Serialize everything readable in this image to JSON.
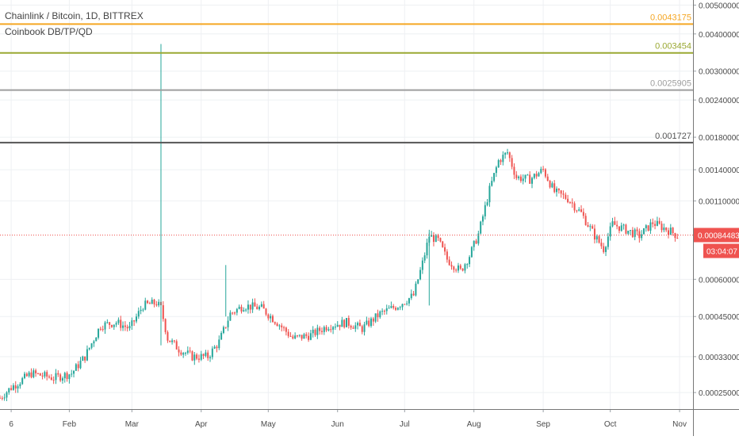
{
  "legend": {
    "symbol_line": "Chainlink / Bitcoin, 1D, BITTREX",
    "indicator_line": "Coinbook DB/TP/QD"
  },
  "chart_data": {
    "type": "candlestick",
    "y_scale": "log",
    "y_ticks": [
      "0.00500000",
      "0.00400000",
      "0.00300000",
      "0.00240000",
      "0.00180000",
      "0.00140000",
      "0.00110000",
      "0.00084483",
      "0.00060000",
      "0.00045000",
      "0.00033000",
      "0.00025000"
    ],
    "x_ticks": [
      "6",
      "Feb",
      "Mar",
      "Apr",
      "May",
      "Jun",
      "Jul",
      "Aug",
      "Sep",
      "Oct",
      "Nov"
    ],
    "levels": [
      {
        "label": "0.0043175",
        "value": 0.0043175,
        "color": "#f5a623"
      },
      {
        "label": "0.003454",
        "value": 0.003454,
        "color": "#9aa832"
      },
      {
        "label": "0.0025905",
        "value": 0.0025905,
        "color": "#9e9e9e"
      },
      {
        "label": "0.001727",
        "value": 0.001727,
        "color": "#555555"
      }
    ],
    "last_price": {
      "label": "0.00084483",
      "value": 0.00084483,
      "countdown": "03:04:07",
      "color": "#ef5350"
    },
    "up_color": "#26a69a",
    "down_color": "#ef5350",
    "price_path": [
      [
        "2019-01-01",
        0.00024
      ],
      [
        "2019-01-06",
        0.00026
      ],
      [
        "2019-01-15",
        0.00029
      ],
      [
        "2019-01-25",
        0.00028
      ],
      [
        "2019-02-02",
        0.00029
      ],
      [
        "2019-02-08",
        0.00033
      ],
      [
        "2019-02-15",
        0.00042
      ],
      [
        "2019-02-22",
        0.00043
      ],
      [
        "2019-02-28",
        0.00041
      ],
      [
        "2019-03-06",
        0.00049
      ],
      [
        "2019-03-12",
        0.0005
      ],
      [
        "2019-03-14",
        0.00048
      ],
      [
        "2019-03-17",
        0.00038
      ],
      [
        "2019-03-22",
        0.00035
      ],
      [
        "2019-03-28",
        0.00033
      ],
      [
        "2019-04-04",
        0.00033
      ],
      [
        "2019-04-09",
        0.00037
      ],
      [
        "2019-04-14",
        0.00046
      ],
      [
        "2019-04-20",
        0.00049
      ],
      [
        "2019-04-28",
        0.00048
      ],
      [
        "2019-05-05",
        0.00043
      ],
      [
        "2019-05-12",
        0.00038
      ],
      [
        "2019-05-20",
        0.00039
      ],
      [
        "2019-05-28",
        0.00042
      ],
      [
        "2019-06-05",
        0.00043
      ],
      [
        "2019-06-12",
        0.00041
      ],
      [
        "2019-06-20",
        0.00046
      ],
      [
        "2019-06-28",
        0.00049
      ],
      [
        "2019-07-05",
        0.00053
      ],
      [
        "2019-07-09",
        0.00068
      ],
      [
        "2019-07-12",
        0.00084
      ],
      [
        "2019-07-16",
        0.00081
      ],
      [
        "2019-07-20",
        0.0007
      ],
      [
        "2019-07-26",
        0.00064
      ],
      [
        "2019-07-30",
        0.00072
      ],
      [
        "2019-08-03",
        0.00085
      ],
      [
        "2019-08-08",
        0.0012
      ],
      [
        "2019-08-12",
        0.0015
      ],
      [
        "2019-08-16",
        0.0016
      ],
      [
        "2019-08-20",
        0.00132
      ],
      [
        "2019-08-26",
        0.0013
      ],
      [
        "2019-09-01",
        0.0014
      ],
      [
        "2019-09-06",
        0.00118
      ],
      [
        "2019-09-12",
        0.00112
      ],
      [
        "2019-09-18",
        0.001
      ],
      [
        "2019-09-24",
        0.00084
      ],
      [
        "2019-09-28",
        0.00076
      ],
      [
        "2019-10-02",
        0.00092
      ],
      [
        "2019-10-08",
        0.00088
      ],
      [
        "2019-10-14",
        0.00084
      ],
      [
        "2019-10-20",
        0.00093
      ],
      [
        "2019-10-24",
        0.0009
      ],
      [
        "2019-10-28",
        0.00087
      ],
      [
        "2019-10-31",
        0.00084
      ]
    ],
    "spikes": [
      {
        "date": "2019-03-14",
        "high": 0.0037,
        "low": 0.00036
      },
      {
        "date": "2019-04-12",
        "high": 0.00067,
        "low": 0.00045
      },
      {
        "date": "2019-07-12",
        "high": 0.00088,
        "low": 0.00049
      }
    ]
  }
}
